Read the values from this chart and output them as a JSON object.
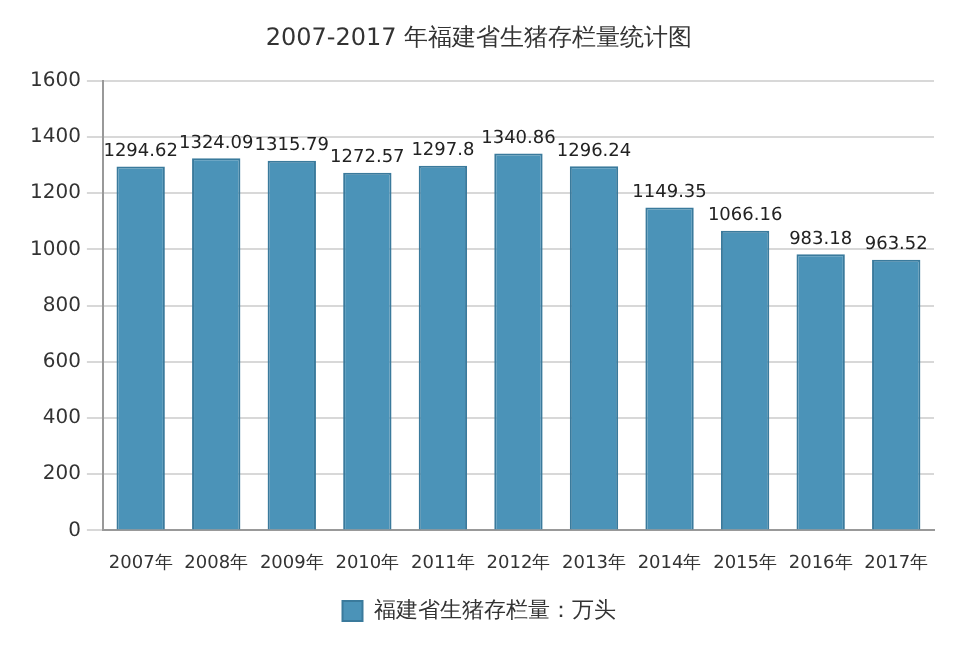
{
  "chart_data": {
    "type": "bar",
    "title": "2007-2017 年福建省生猪存栏量统计图",
    "categories": [
      "2007年",
      "2008年",
      "2009年",
      "2010年",
      "2011年",
      "2012年",
      "2013年",
      "2014年",
      "2015年",
      "2016年",
      "2017年"
    ],
    "series": [
      {
        "name": "福建省生猪存栏量：万头",
        "color": "#4b93b8",
        "values": [
          1294.62,
          1324.09,
          1315.79,
          1272.57,
          1297.8,
          1340.86,
          1296.24,
          1149.35,
          1066.16,
          983.18,
          963.52
        ]
      }
    ],
    "ylim": [
      0,
      1600
    ],
    "yticks": [
      0,
      200,
      400,
      600,
      800,
      1000,
      1200,
      1400,
      1600
    ],
    "grid": "y",
    "legend": "bottom",
    "data_labels": true
  }
}
